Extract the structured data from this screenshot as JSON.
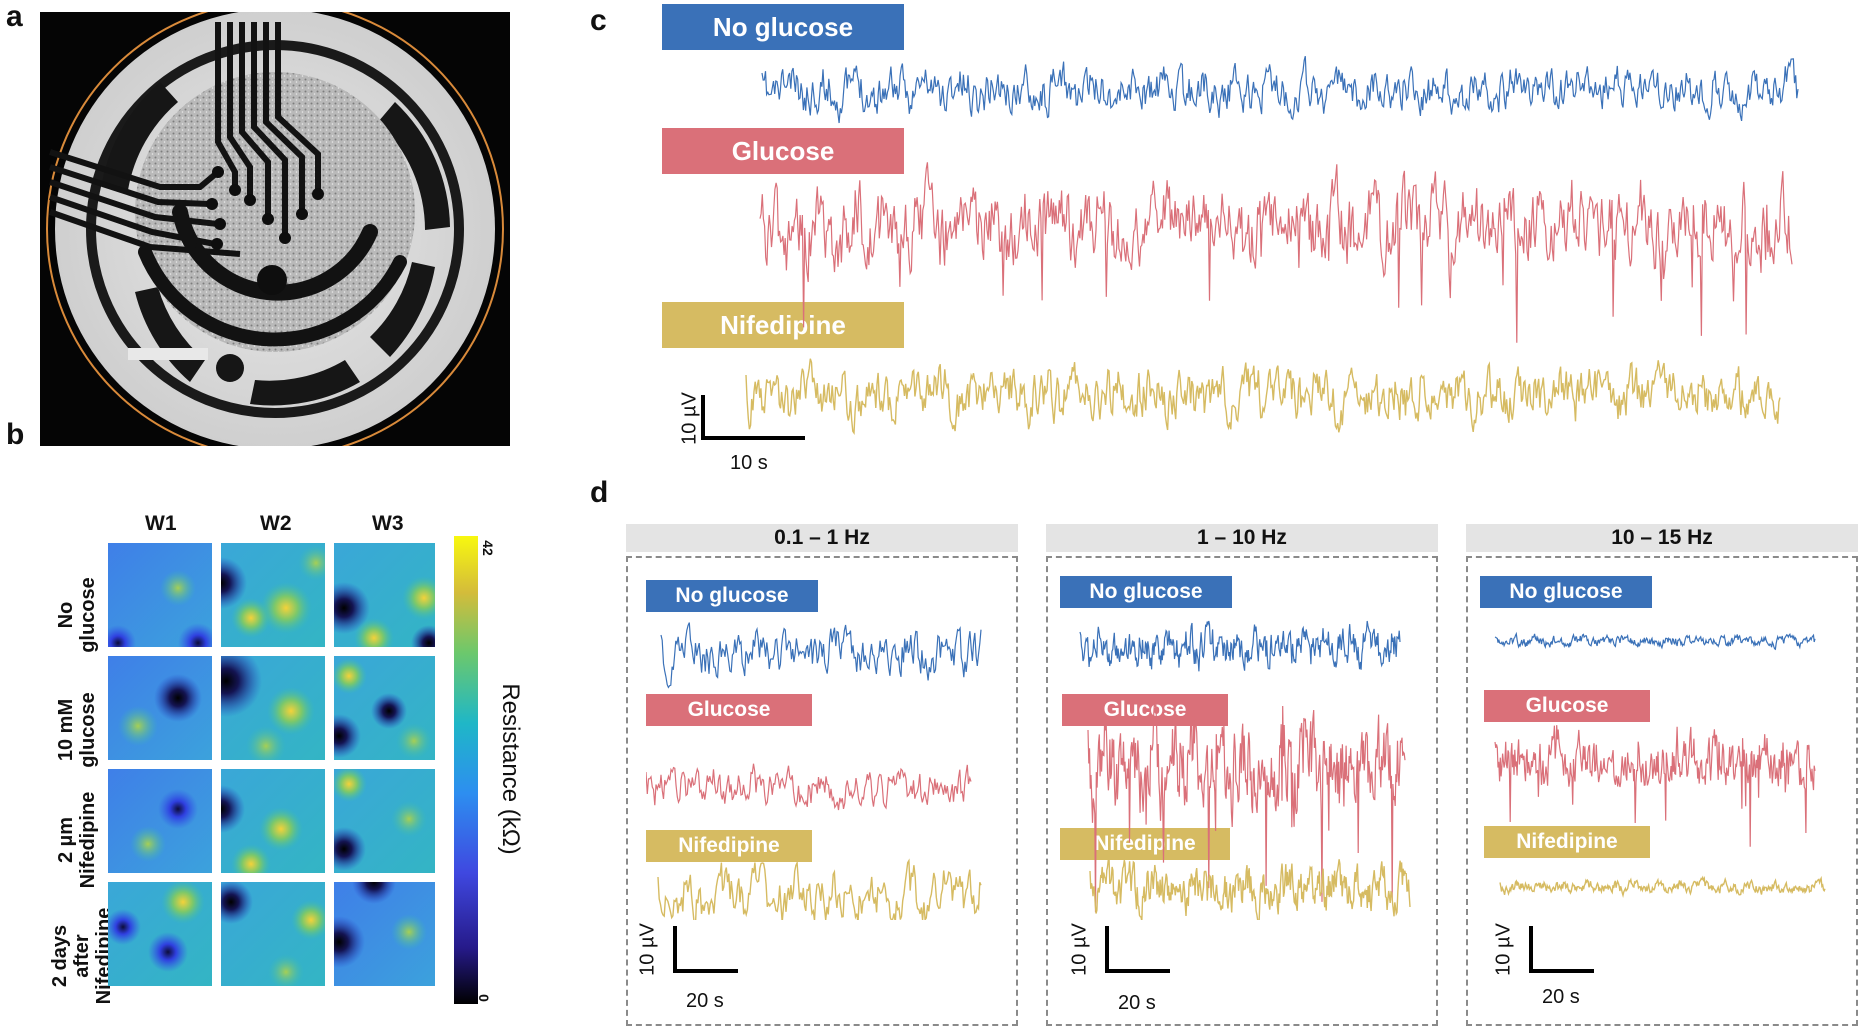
{
  "panels": {
    "a": "a",
    "b": "b",
    "c": "c",
    "d": "d"
  },
  "panel_b": {
    "columns": [
      "W1",
      "W2",
      "W3"
    ],
    "rows": [
      [
        "No",
        "glucose"
      ],
      [
        "10 mM",
        "glucose"
      ],
      [
        "2 µm",
        "Nifedipine"
      ],
      [
        "2 days",
        "after",
        "Nifedipine"
      ]
    ],
    "colorbar": {
      "max": "42",
      "min": "0",
      "title": "Resistance (kΩ)"
    }
  },
  "panel_c": {
    "labels": [
      "No glucose",
      "Glucose",
      "Nifedipine"
    ],
    "scale_y": "10  µV",
    "scale_x": "10 s"
  },
  "panel_d": {
    "bands": [
      {
        "title": "0.1 – 1 Hz",
        "labels": [
          "No glucose",
          "Glucose",
          "Nifedipine"
        ],
        "scale_y": "10  µV",
        "scale_x": "20 s"
      },
      {
        "title": "1 – 10 Hz",
        "labels": [
          "No glucose",
          "Glucose",
          "Nifedipine"
        ],
        "scale_y": "10  µV",
        "scale_x": "20 s"
      },
      {
        "title": "10 – 15 Hz",
        "labels": [
          "No glucose",
          "Glucose",
          "Nifedipine"
        ],
        "scale_y": "10  µV",
        "scale_x": "20 s"
      }
    ]
  },
  "colors": {
    "no_glucose": "#3a71b8",
    "glucose": "#da7079",
    "nifedipine": "#d6bb62",
    "orange_ring": "#d98a3a"
  }
}
